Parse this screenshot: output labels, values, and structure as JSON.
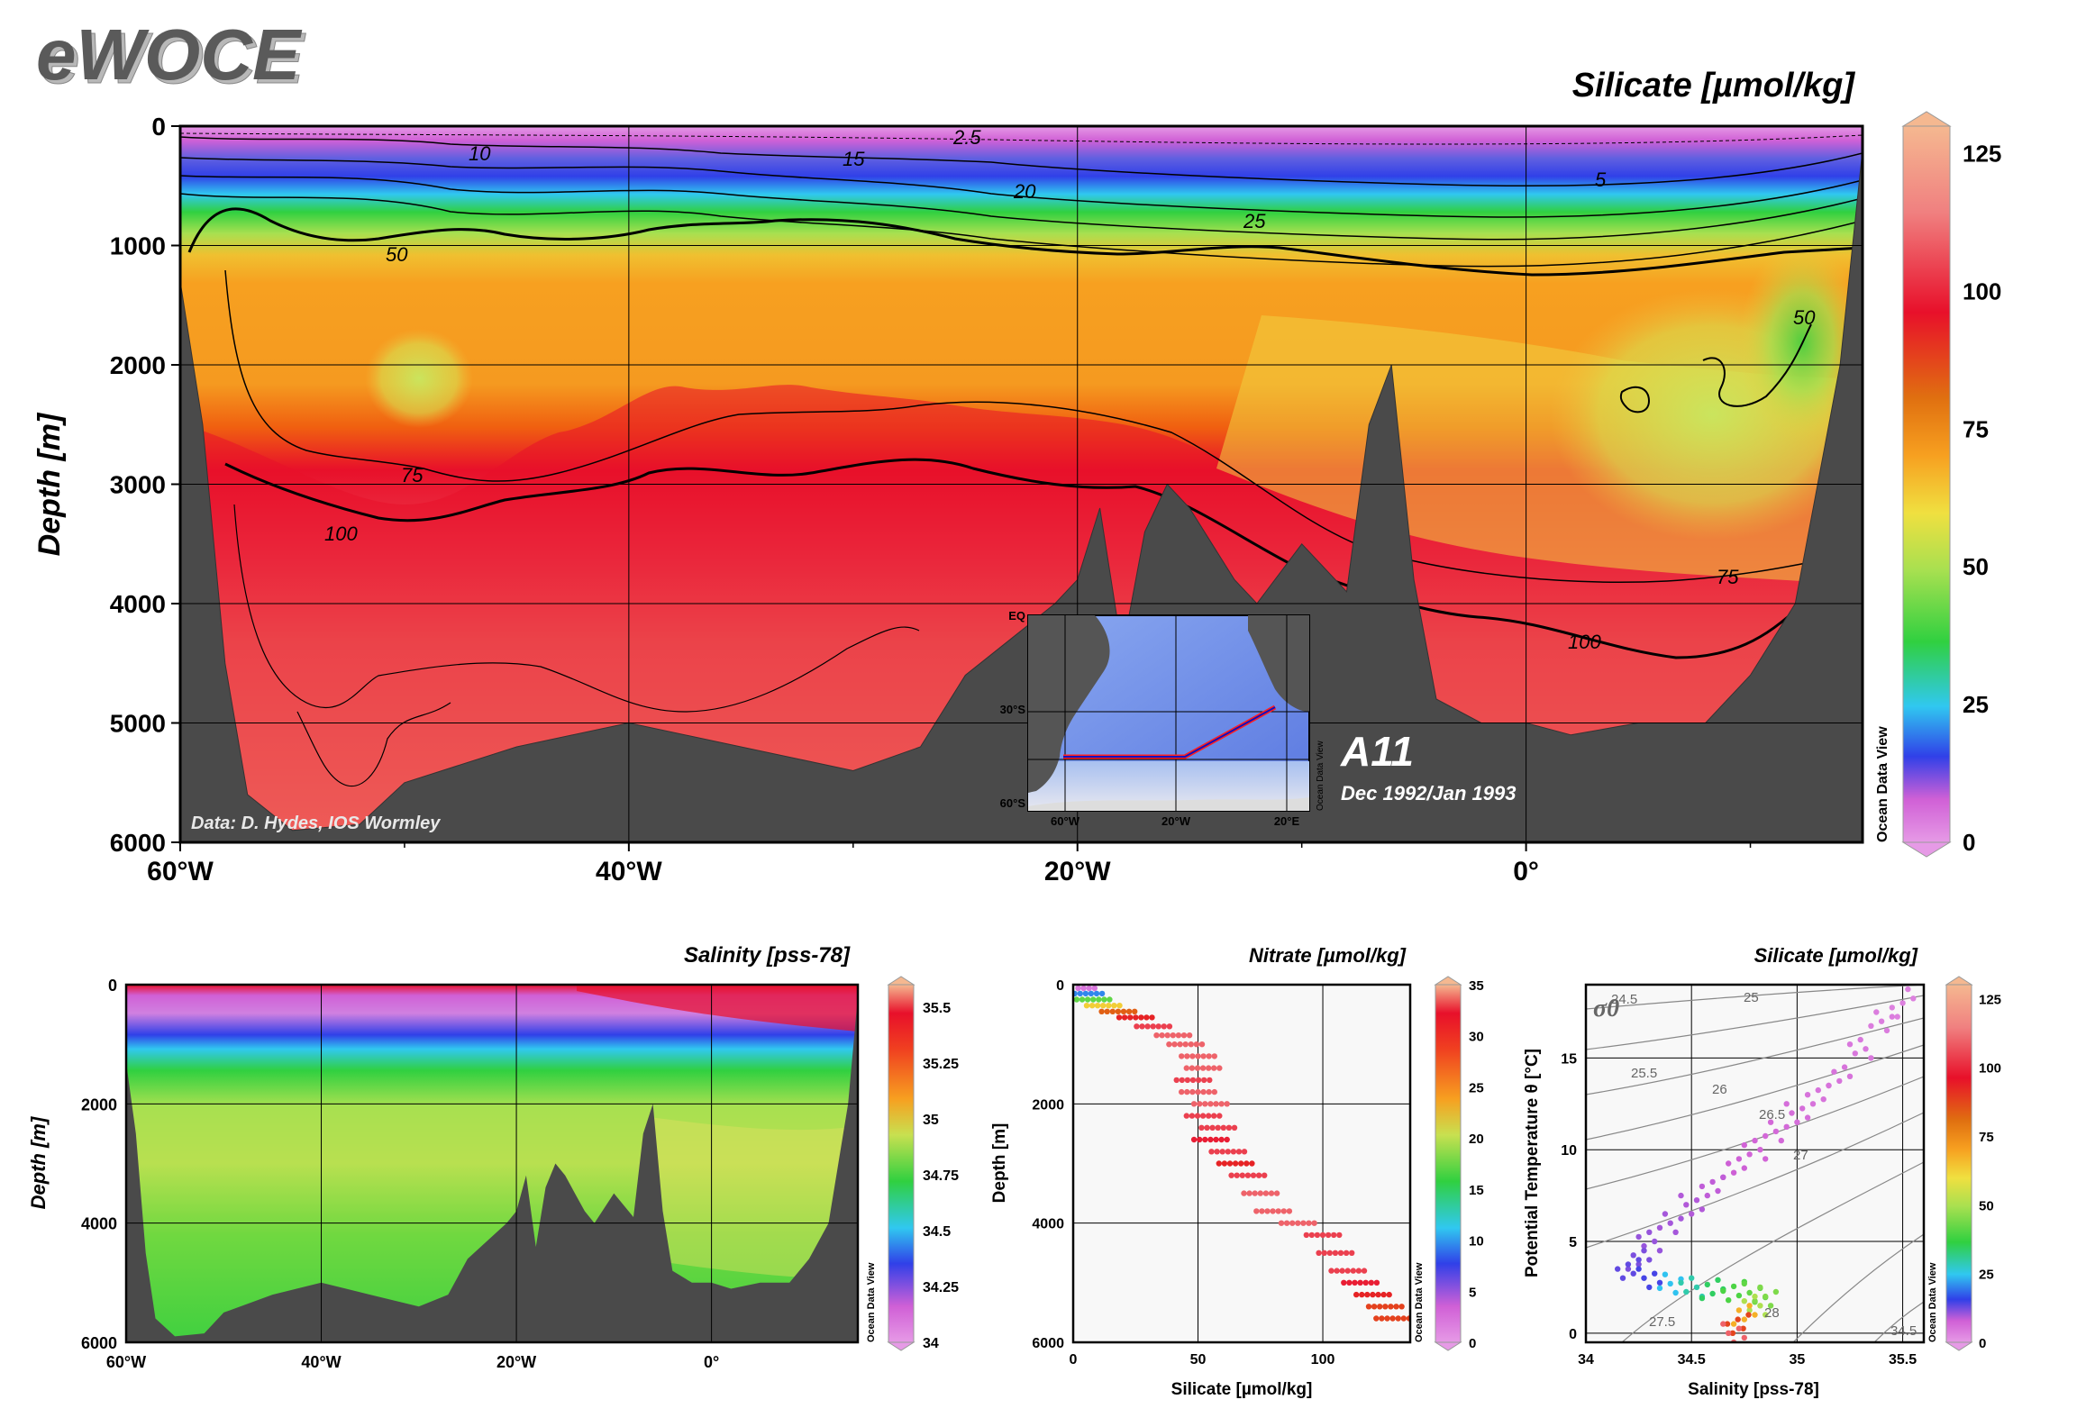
{
  "logo": "eWOCE",
  "colors": {
    "terrain": "#4a4a4a",
    "grid": "#000000",
    "odv_scale": [
      "#e69ae6",
      "#d060d6",
      "#3040e8",
      "#30c8f0",
      "#30d040",
      "#a8e050",
      "#f0e040",
      "#f7a020",
      "#e07010",
      "#e8102a",
      "#f08080",
      "#f5b890"
    ]
  },
  "main": {
    "title": "Silicate [µmol/kg]",
    "ylabel": "Depth [m]",
    "credit": "Data: D. Hydes, IOS Wormley",
    "section": "A11",
    "date": "Dec 1992/Jan 1993",
    "odv_mark": "Ocean Data View",
    "colorbar": {
      "ticks": [
        "125",
        "100",
        "75",
        "50",
        "25",
        "0"
      ],
      "range": [
        0,
        130
      ]
    },
    "contour_labels": [
      "2.5",
      "10",
      "15",
      "20",
      "25",
      "5",
      "50",
      "50",
      "75",
      "75",
      "100",
      "100"
    ]
  },
  "inset_map": {
    "lat_labels": [
      "EQ",
      "30°S",
      "60°S"
    ],
    "lon_labels": [
      "60°W",
      "20°W",
      "20°E"
    ],
    "odv_mark": "Ocean Data View"
  },
  "salinity": {
    "title": "Salinity [pss-78]",
    "ylabel": "Depth [m]",
    "odv_mark": "Ocean Data View",
    "colorbar": {
      "ticks": [
        "35.5",
        "35.25",
        "35",
        "34.75",
        "34.5",
        "34.25",
        "34"
      ],
      "range": [
        34,
        35.6
      ]
    }
  },
  "nitrate": {
    "title": "Nitrate [µmol/kg]",
    "ylabel": "Depth [m]",
    "xlabel": "Silicate [µmol/kg]",
    "odv_mark": "Ocean Data View",
    "colorbar": {
      "ticks": [
        "35",
        "30",
        "25",
        "20",
        "15",
        "10",
        "5",
        "0"
      ],
      "range": [
        0,
        35
      ]
    }
  },
  "ts": {
    "title": "Silicate [µmol/kg]",
    "ylabel": "Potential Temperature θ [°C]",
    "xlabel": "Salinity [pss-78]",
    "sigma_label": "σ0",
    "sigma_contours": [
      "24.5",
      "25",
      "25.5",
      "26",
      "26.5",
      "27",
      "27.5",
      "28",
      "34.5"
    ],
    "odv_mark": "Ocean Data View",
    "colorbar": {
      "ticks": [
        "125",
        "100",
        "75",
        "50",
        "25",
        "0"
      ],
      "range": [
        0,
        130
      ]
    }
  },
  "chart_data": [
    {
      "type": "heatmap",
      "name": "Silicate section A11",
      "title": "Silicate [µmol/kg]",
      "ylabel": "Depth [m]",
      "x_ticks": [
        "60°W",
        "40°W",
        "20°W",
        "0°"
      ],
      "y_ticks": [
        "0",
        "1000",
        "2000",
        "3000",
        "4000",
        "5000",
        "6000"
      ],
      "xlim": [
        -60,
        15
      ],
      "ylim": [
        6000,
        0
      ],
      "colorbar_range": [
        0,
        130
      ],
      "contour_levels": [
        2.5,
        5,
        10,
        15,
        20,
        25,
        50,
        75,
        100
      ],
      "bathymetry": [
        [
          -60,
          1300
        ],
        [
          -59,
          2500
        ],
        [
          -58,
          4500
        ],
        [
          -57,
          5600
        ],
        [
          -55,
          5900
        ],
        [
          -52,
          5850
        ],
        [
          -50,
          5500
        ],
        [
          -45,
          5200
        ],
        [
          -40,
          5000
        ],
        [
          -35,
          5200
        ],
        [
          -30,
          5400
        ],
        [
          -27,
          5200
        ],
        [
          -25,
          4600
        ],
        [
          -23,
          4300
        ],
        [
          -21,
          4000
        ],
        [
          -20,
          3800
        ],
        [
          -19,
          3200
        ],
        [
          -18,
          4400
        ],
        [
          -17,
          3400
        ],
        [
          -16,
          3000
        ],
        [
          -15,
          3200
        ],
        [
          -14,
          3500
        ],
        [
          -13,
          3800
        ],
        [
          -12,
          4000
        ],
        [
          -10,
          3500
        ],
        [
          -8,
          3900
        ],
        [
          -7,
          2500
        ],
        [
          -6,
          2000
        ],
        [
          -5,
          3800
        ],
        [
          -4,
          4800
        ],
        [
          -2,
          5000
        ],
        [
          0,
          5000
        ],
        [
          2,
          5100
        ],
        [
          5,
          5000
        ],
        [
          8,
          5000
        ],
        [
          10,
          4600
        ],
        [
          12,
          4000
        ],
        [
          14,
          2000
        ],
        [
          15,
          200
        ]
      ]
    },
    {
      "type": "heatmap",
      "name": "Salinity section A11",
      "title": "Salinity [pss-78]",
      "ylabel": "Depth [m]",
      "x_ticks": [
        "60°W",
        "40°W",
        "20°W",
        "0°"
      ],
      "y_ticks": [
        "0",
        "2000",
        "4000",
        "6000"
      ],
      "xlim": [
        -60,
        15
      ],
      "ylim": [
        6000,
        0
      ],
      "colorbar_range": [
        34,
        35.6
      ]
    },
    {
      "type": "scatter",
      "name": "Depth vs Silicate colored by Nitrate",
      "title": "Nitrate [µmol/kg]",
      "xlabel": "Silicate [µmol/kg]",
      "ylabel": "Depth [m]",
      "x_ticks": [
        "0",
        "50",
        "100"
      ],
      "y_ticks": [
        "0",
        "2000",
        "4000",
        "6000"
      ],
      "xlim": [
        0,
        135
      ],
      "ylim": [
        6000,
        0
      ],
      "colorbar_range": [
        0,
        35
      ],
      "points": [
        [
          2,
          60,
          2
        ],
        [
          5,
          150,
          8
        ],
        [
          8,
          250,
          14
        ],
        [
          12,
          350,
          20
        ],
        [
          18,
          450,
          26
        ],
        [
          25,
          550,
          28
        ],
        [
          32,
          700,
          30
        ],
        [
          40,
          850,
          31
        ],
        [
          45,
          1000,
          31
        ],
        [
          50,
          1200,
          31
        ],
        [
          52,
          1400,
          31
        ],
        [
          48,
          1600,
          30
        ],
        [
          50,
          1800,
          31
        ],
        [
          55,
          2000,
          31
        ],
        [
          52,
          2200,
          30
        ],
        [
          58,
          2400,
          30
        ],
        [
          55,
          2600,
          29
        ],
        [
          62,
          2800,
          30
        ],
        [
          65,
          3000,
          28
        ],
        [
          70,
          3200,
          30
        ],
        [
          75,
          3500,
          31
        ],
        [
          80,
          3800,
          31
        ],
        [
          90,
          4000,
          31
        ],
        [
          100,
          4200,
          30
        ],
        [
          105,
          4500,
          30
        ],
        [
          110,
          4800,
          30
        ],
        [
          115,
          5000,
          29
        ],
        [
          120,
          5200,
          28
        ],
        [
          125,
          5400,
          27
        ],
        [
          128,
          5600,
          27
        ]
      ]
    },
    {
      "type": "scatter",
      "name": "Theta-S colored by Silicate",
      "title": "Silicate [µmol/kg]",
      "xlabel": "Salinity [pss-78]",
      "ylabel": "Potential Temperature θ [°C]",
      "x_ticks": [
        "34",
        "34.5",
        "35",
        "35.5"
      ],
      "y_ticks": [
        "0",
        "5",
        "10",
        "15"
      ],
      "xlim": [
        34,
        35.6
      ],
      "ylim": [
        -0.5,
        19
      ],
      "colorbar_range": [
        0,
        130
      ],
      "points": [
        [
          35.5,
          18.5,
          5
        ],
        [
          35.4,
          17,
          6
        ],
        [
          35.3,
          15.5,
          7
        ],
        [
          35.2,
          14,
          8
        ],
        [
          35.1,
          13,
          8
        ],
        [
          35.0,
          12,
          9
        ],
        [
          34.9,
          11,
          10
        ],
        [
          34.8,
          10,
          11
        ],
        [
          34.7,
          9,
          12
        ],
        [
          34.6,
          8,
          13
        ],
        [
          34.5,
          7,
          14
        ],
        [
          34.4,
          6,
          15
        ],
        [
          34.3,
          5,
          16
        ],
        [
          34.25,
          4,
          18
        ],
        [
          34.2,
          3.5,
          20
        ],
        [
          34.3,
          3,
          22
        ],
        [
          34.4,
          2.7,
          35
        ],
        [
          34.5,
          2.5,
          40
        ],
        [
          34.6,
          2.4,
          45
        ],
        [
          34.7,
          2.3,
          50
        ],
        [
          34.8,
          2.2,
          52
        ],
        [
          34.85,
          2.0,
          55
        ],
        [
          34.8,
          1.5,
          60
        ],
        [
          34.75,
          1.0,
          80
        ],
        [
          34.72,
          0.5,
          100
        ],
        [
          34.7,
          0.0,
          115
        ]
      ]
    }
  ]
}
